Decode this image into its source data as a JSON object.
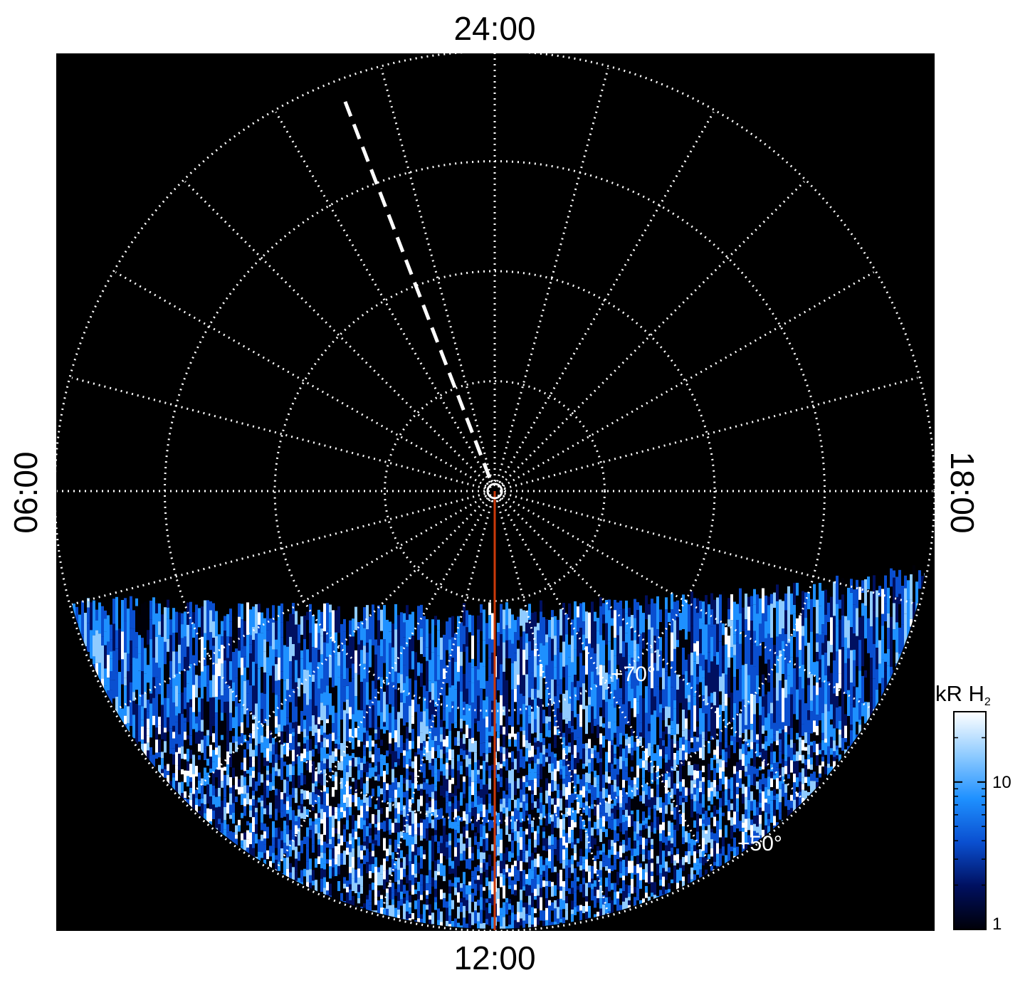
{
  "chart_data": {
    "type": "heatmap",
    "projection": "polar",
    "local_time_labels": {
      "top": "24:00",
      "bottom": "12:00",
      "left": "06:00",
      "right": "18:00"
    },
    "latitude_labels": [
      "+70°",
      "+50°"
    ],
    "latitude_label_values": [
      70,
      50
    ],
    "colat_circles_deg": [
      10,
      20,
      30,
      40
    ],
    "lt_meridian_step_hours": 1,
    "dashed_meridian_lt_hours": 1.4,
    "highlighted_meridian_lt_hours": 12,
    "highlight_color": "#cc3a0a",
    "colorbar": {
      "title": "kR H",
      "title_subscript": "2",
      "scale": "log",
      "range": [
        1,
        30
      ],
      "tick_labels": [
        "1",
        "10"
      ],
      "tick_values": [
        1,
        10
      ],
      "colors": [
        "#000008",
        "#001060",
        "#0a4fd0",
        "#1e90ff",
        "#8fcbff",
        "#ffffff"
      ]
    },
    "grid": true,
    "background": "#000000"
  }
}
